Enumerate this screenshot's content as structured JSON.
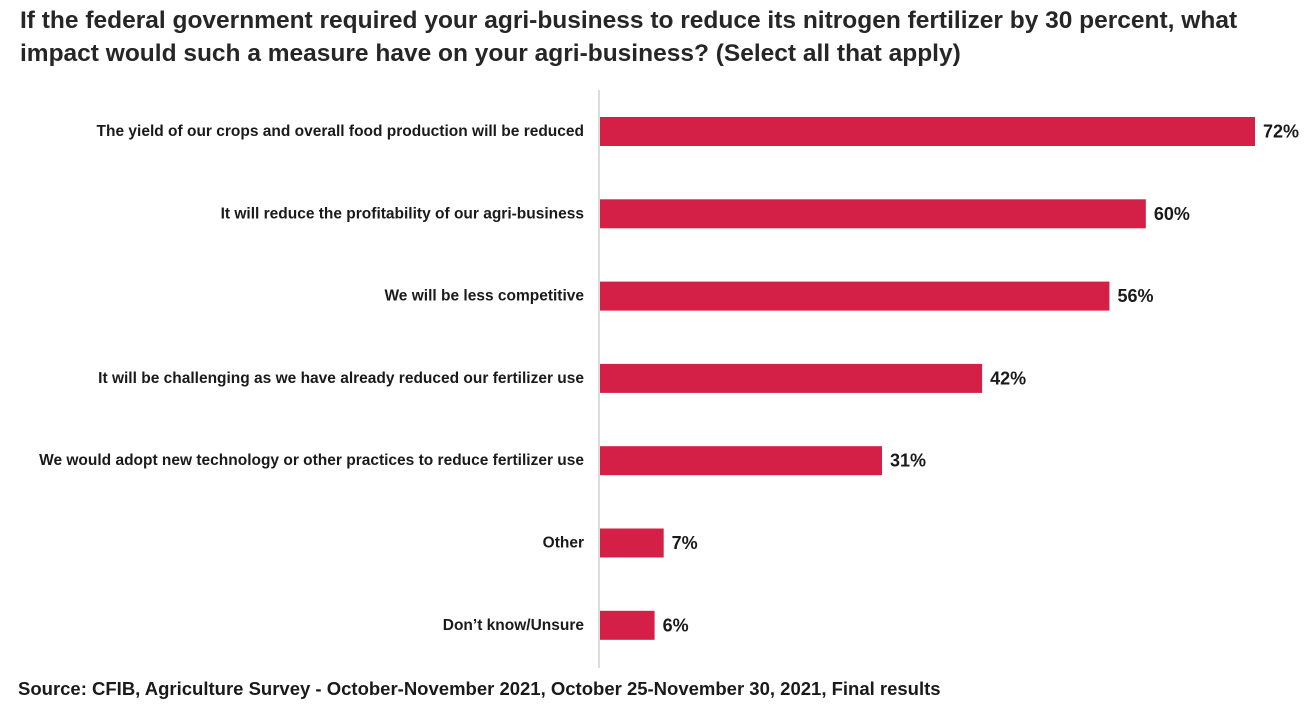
{
  "chart_data": {
    "type": "bar",
    "orientation": "horizontal",
    "title": "If the federal government required your agri-business to reduce its nitrogen fertilizer by 30 percent, what impact would such a measure have on your agri-business? (Select all that apply)",
    "categories": [
      "The yield of our crops and overall food production will be reduced",
      "It will reduce the profitability of our agri-business",
      "We will be less competitive",
      "It will be challenging as we have already reduced our fertilizer use",
      "We would adopt new technology or other practices to reduce fertilizer use",
      "Other",
      "Don’t know/Unsure"
    ],
    "values": [
      72,
      60,
      56,
      42,
      31,
      7,
      6
    ],
    "value_labels": [
      "72%",
      "60%",
      "56%",
      "42%",
      "31%",
      "7%",
      "6%"
    ],
    "unit": "%",
    "xlim": [
      0,
      72
    ],
    "bar_color": "#d41f46",
    "grid": false,
    "legend": "none"
  },
  "source": "Source: CFIB, Agriculture Survey - October-November 2021, October 25-November 30, 2021, Final results"
}
